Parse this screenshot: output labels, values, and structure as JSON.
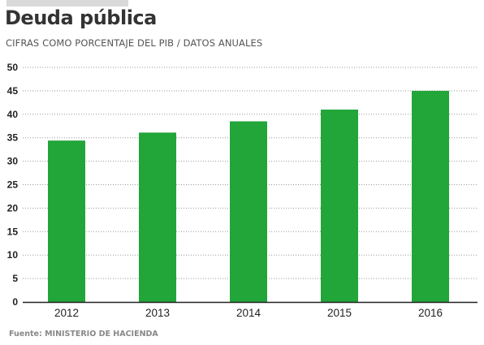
{
  "title": "Deuda pública",
  "subtitle": "CIFRAS COMO PORCENTAJE DEL PIB  /  DATOS ANUALES",
  "source": "Fuente: MINISTERIO DE HACIENDA",
  "colors": {
    "bar": "#22a539",
    "grid": "#999999",
    "axis": "#222222"
  },
  "chart_data": {
    "type": "bar",
    "title": "Deuda pública",
    "subtitle": "CIFRAS COMO PORCENTAJE DEL PIB  /  DATOS ANUALES",
    "categories": [
      "2012",
      "2013",
      "2014",
      "2015",
      "2016"
    ],
    "values": [
      34.4,
      36.1,
      38.5,
      41.0,
      45.0
    ],
    "xlabel": "",
    "ylabel": "",
    "ylim": [
      0,
      50
    ],
    "yticks": [
      0,
      5,
      10,
      15,
      20,
      25,
      30,
      35,
      40,
      45,
      50
    ],
    "grid": true,
    "grid_style": "dotted",
    "legend": "none"
  }
}
